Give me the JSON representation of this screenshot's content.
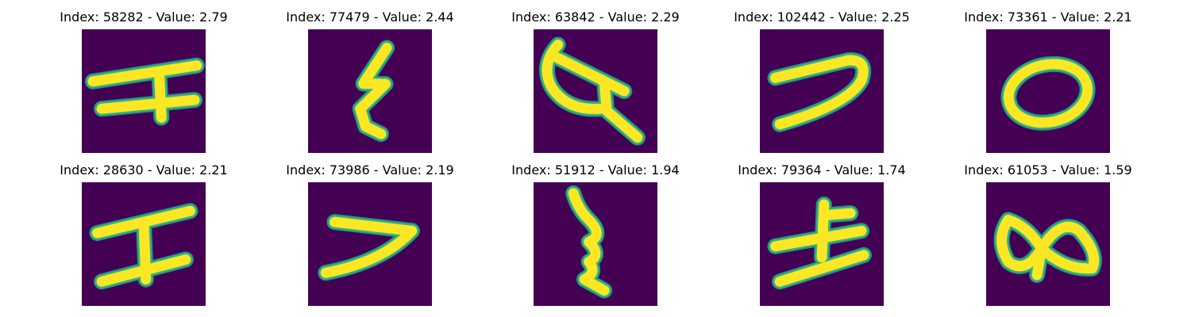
{
  "colors": {
    "background": "#440154",
    "stroke_edge": "#21918c",
    "stroke_mid": "#35b779",
    "stroke_core": "#fde725"
  },
  "panels": [
    {
      "title": "Index: 58282 - Value: 2.79"
    },
    {
      "title": "Index: 77479 - Value: 2.44"
    },
    {
      "title": "Index: 63842 - Value: 2.29"
    },
    {
      "title": "Index: 102442 - Value: 2.25"
    },
    {
      "title": "Index: 73361 - Value: 2.21"
    },
    {
      "title": "Index: 28630 - Value: 2.21"
    },
    {
      "title": "Index: 73986 - Value: 2.19"
    },
    {
      "title": "Index: 51912 - Value: 1.94"
    },
    {
      "title": "Index: 79364 - Value: 1.74"
    },
    {
      "title": "Index: 61053 - Value: 1.59"
    }
  ]
}
